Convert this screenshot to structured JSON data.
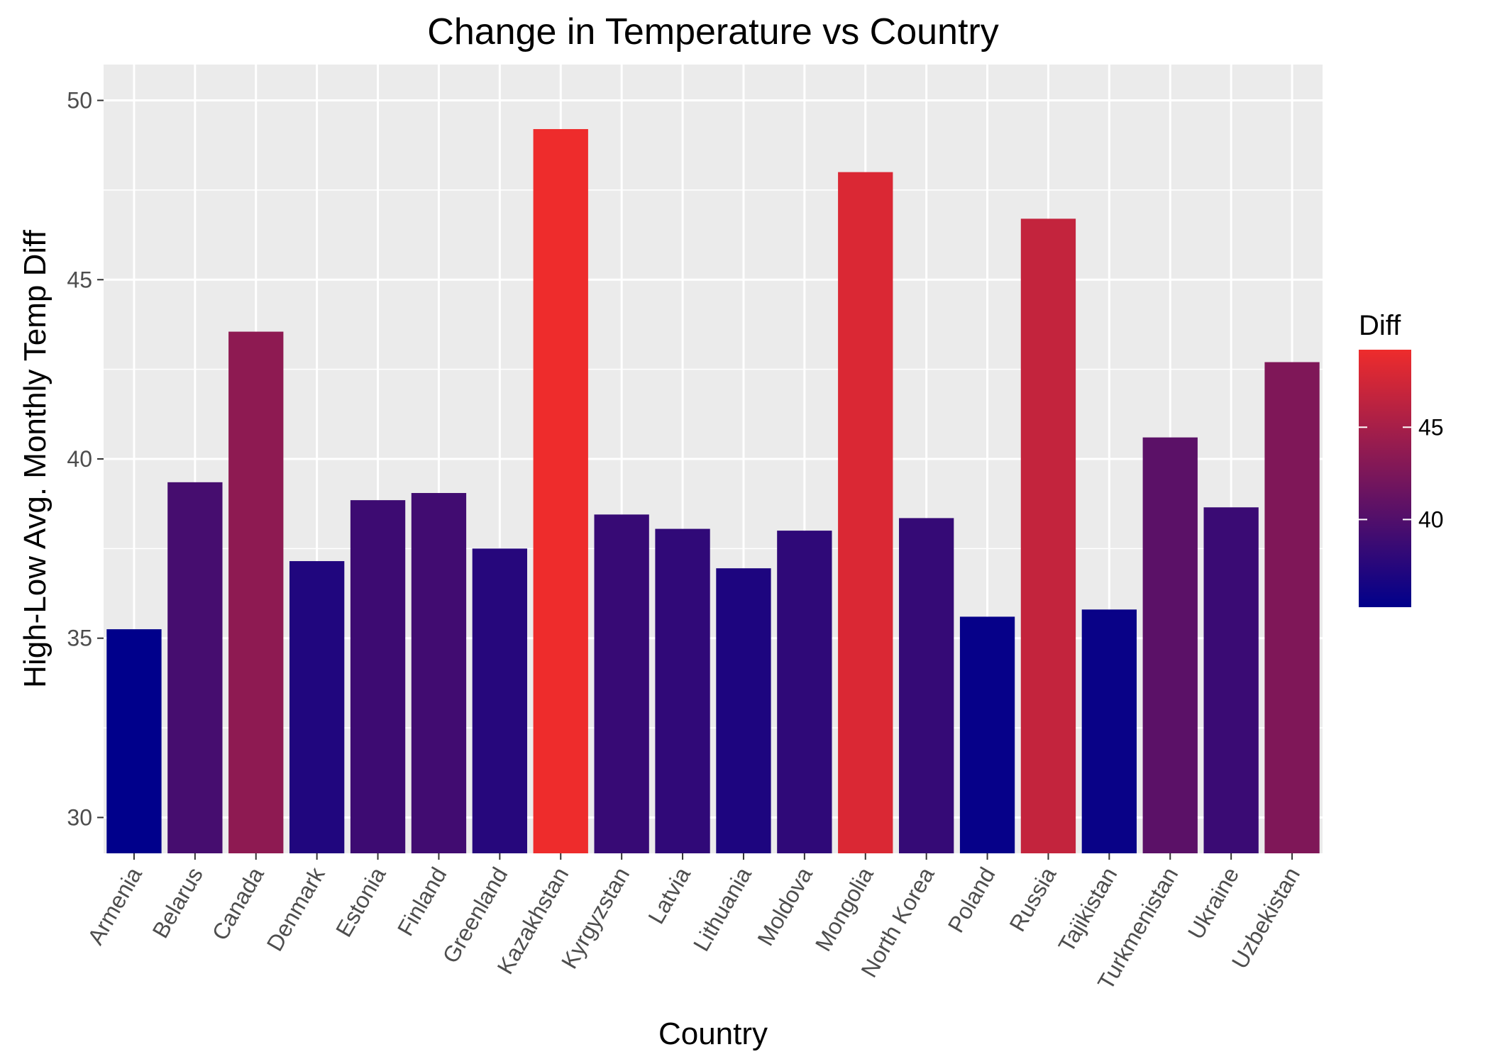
{
  "chart_data": {
    "type": "bar",
    "title": "Change in Temperature vs Country",
    "xlabel": "Country",
    "ylabel": "High-Low Avg. Monthly Temp Diff",
    "categories": [
      "Armenia",
      "Belarus",
      "Canada",
      "Denmark",
      "Estonia",
      "Finland",
      "Greenland",
      "Kazakhstan",
      "Kyrgyzstan",
      "Latvia",
      "Lithuania",
      "Moldova",
      "Mongolia",
      "North Korea",
      "Poland",
      "Russia",
      "Tajikistan",
      "Turkmenistan",
      "Ukraine",
      "Uzbekistan"
    ],
    "values": [
      35.25,
      39.35,
      43.55,
      37.15,
      38.85,
      39.05,
      37.5,
      49.2,
      38.45,
      38.05,
      36.95,
      38.0,
      48.0,
      38.35,
      35.6,
      46.7,
      35.8,
      40.6,
      38.65,
      42.7
    ],
    "ylim": [
      29,
      51
    ],
    "yticks": [
      30,
      35,
      40,
      45,
      50
    ],
    "grid": true,
    "legend": {
      "title": "Diff",
      "position": "right",
      "ticks": [
        40,
        45
      ],
      "range": [
        35.25,
        49.2
      ],
      "low_color": "#00008B",
      "high_color": "#EE2C2C"
    },
    "colors": {
      "panel_background": "#EBEBEB",
      "grid_major": "#FFFFFF",
      "tick_color": "#333333"
    }
  }
}
